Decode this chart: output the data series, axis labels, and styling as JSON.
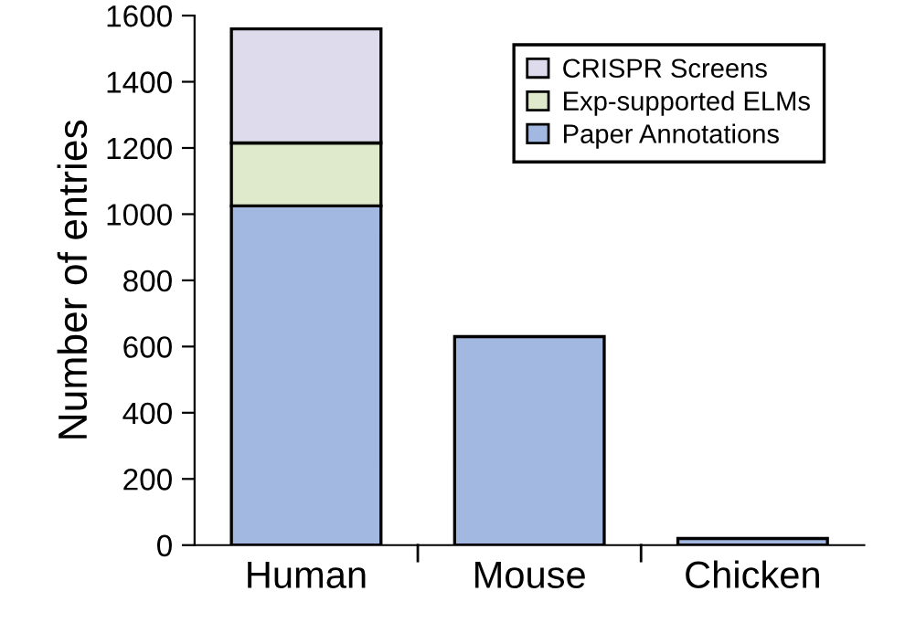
{
  "chart_data": {
    "type": "bar",
    "stacked": true,
    "ylabel": "Number of entries",
    "categories": [
      "Human",
      "Mouse",
      "Chicken"
    ],
    "series": [
      {
        "name": "Paper Annotations",
        "color": "#a3b8e0",
        "values": [
          1025,
          630,
          20
        ]
      },
      {
        "name": "Exp-supported ELMs",
        "color": "#dfe9cb",
        "values": [
          190,
          null,
          null
        ]
      },
      {
        "name": "CRISPR Screens",
        "color": "#dedbec",
        "values": [
          345,
          null,
          null
        ]
      }
    ],
    "ylim": [
      0,
      1600
    ],
    "yticks": [
      0,
      200,
      400,
      600,
      800,
      1000,
      1200,
      1400,
      1600
    ],
    "grid": false,
    "legend": "top right"
  }
}
